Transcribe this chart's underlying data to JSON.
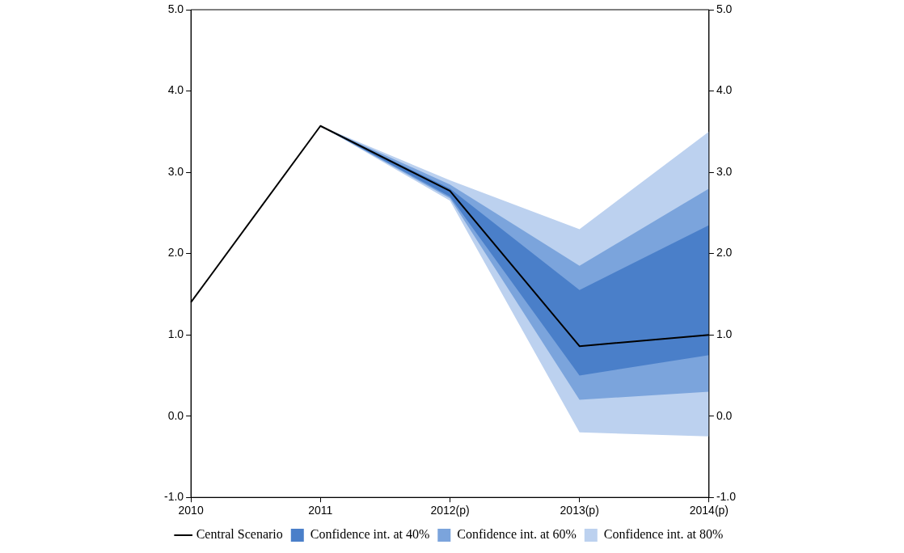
{
  "chart_data": {
    "type": "line",
    "categories": [
      "2010",
      "2011",
      "2012(p)",
      "2013(p)",
      "2014(p)"
    ],
    "series": [
      {
        "name": "Central Scenario",
        "type": "line",
        "color": "#000000",
        "values": [
          1.4,
          3.57,
          2.77,
          0.86,
          1.0
        ]
      },
      {
        "name": "Confidence int. at 40%",
        "type": "line",
        "color": "#4a7fc9",
        "values": [
          null,
          null,
          null,
          null,
          null
        ],
        "lower": [
          null,
          3.57,
          2.7,
          0.5,
          0.75
        ],
        "upper": [
          null,
          3.57,
          2.8,
          1.55,
          2.35
        ]
      },
      {
        "name": "Confidence int. at 60%",
        "type": "line",
        "color": "#7ba4dc",
        "values": [
          null,
          null,
          null,
          null,
          null
        ],
        "lower": [
          null,
          3.57,
          2.68,
          0.2,
          0.3
        ],
        "upper": [
          null,
          3.57,
          2.85,
          1.85,
          2.8
        ]
      },
      {
        "name": "Confidence int. at 80%",
        "type": "line",
        "color": "#bcd1ef",
        "values": [
          null,
          null,
          null,
          null,
          null
        ],
        "lower": [
          null,
          3.57,
          2.65,
          -0.2,
          -0.25
        ],
        "upper": [
          null,
          3.57,
          2.9,
          2.3,
          3.5
        ]
      }
    ],
    "ylim": [
      -1,
      5
    ],
    "yticks": [
      {
        "value": -1,
        "label": "-1.0"
      },
      {
        "value": 0,
        "label": "0.0"
      },
      {
        "value": 1,
        "label": "1.0"
      },
      {
        "value": 2,
        "label": "2.0"
      },
      {
        "value": 3,
        "label": "3.0"
      },
      {
        "value": 4,
        "label": "4.0"
      },
      {
        "value": 5,
        "label": "5.0"
      }
    ],
    "y2lim": [
      -1,
      5
    ],
    "y2ticks": [
      {
        "value": -1,
        "label": "-1.0"
      },
      {
        "value": 0,
        "label": "0.0"
      },
      {
        "value": 1,
        "label": "1.0"
      },
      {
        "value": 2,
        "label": "2.0"
      },
      {
        "value": 3,
        "label": "3.0"
      },
      {
        "value": 4,
        "label": "4.0"
      },
      {
        "value": 5,
        "label": "5.0"
      }
    ],
    "grid": false,
    "legend": "bottom",
    "marker": "none",
    "line_style": "solid"
  }
}
